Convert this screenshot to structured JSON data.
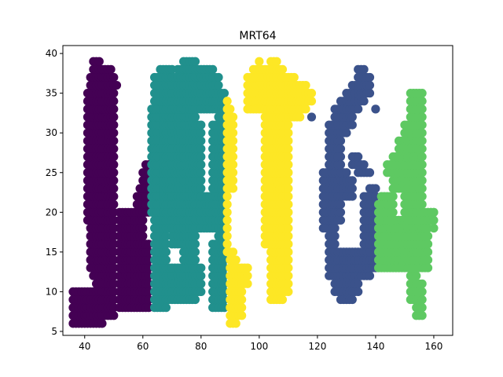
{
  "chart_data": {
    "type": "scatter",
    "title": "MRT64",
    "xlabel": "",
    "ylabel": "",
    "xlim": [
      32.5,
      166.5
    ],
    "ylim": [
      4.5,
      41.0
    ],
    "xticks": [
      40,
      60,
      80,
      100,
      120,
      140,
      160
    ],
    "yticks": [
      5,
      10,
      15,
      20,
      25,
      30,
      35,
      40
    ],
    "grid": false,
    "legend": "none",
    "step": 1,
    "series": [
      {
        "color": "#440154",
        "runs": [
          [
            6,
            36,
            46
          ],
          [
            7,
            36,
            50
          ],
          [
            8,
            36,
            50
          ],
          [
            9,
            36,
            50
          ],
          [
            10,
            36,
            50
          ],
          [
            8,
            52,
            62
          ],
          [
            9,
            52,
            62
          ],
          [
            10,
            52,
            62
          ],
          [
            11,
            52,
            62
          ],
          [
            12,
            52,
            62
          ],
          [
            13,
            52,
            62
          ],
          [
            14,
            52,
            62
          ],
          [
            15,
            52,
            62
          ],
          [
            16,
            52,
            62
          ],
          [
            17,
            52,
            60
          ],
          [
            18,
            52,
            60
          ],
          [
            19,
            52,
            60
          ],
          [
            20,
            52,
            62
          ],
          [
            11,
            44,
            50
          ],
          [
            12,
            43,
            50
          ],
          [
            13,
            42,
            50
          ],
          [
            14,
            42,
            50
          ],
          [
            15,
            42,
            50
          ],
          [
            16,
            42,
            50
          ],
          [
            17,
            42,
            50
          ],
          [
            18,
            42,
            50
          ],
          [
            19,
            41,
            50
          ],
          [
            20,
            41,
            50
          ],
          [
            21,
            41,
            50
          ],
          [
            22,
            41,
            50
          ],
          [
            23,
            41,
            50
          ],
          [
            24,
            41,
            50
          ],
          [
            25,
            41,
            50
          ],
          [
            26,
            41,
            50
          ],
          [
            27,
            41,
            50
          ],
          [
            28,
            41,
            50
          ],
          [
            29,
            41,
            50
          ],
          [
            30,
            41,
            50
          ],
          [
            31,
            41,
            50
          ],
          [
            32,
            41,
            50
          ],
          [
            33,
            41,
            50
          ],
          [
            34,
            41,
            50
          ],
          [
            35,
            41,
            50
          ],
          [
            36,
            42,
            51
          ],
          [
            37,
            42,
            50
          ],
          [
            38,
            43,
            49
          ],
          [
            39,
            43,
            45
          ],
          [
            21,
            58,
            62
          ],
          [
            22,
            58,
            62
          ],
          [
            23,
            59,
            62
          ],
          [
            24,
            60,
            62
          ],
          [
            25,
            60,
            62
          ],
          [
            26,
            61,
            62
          ]
        ]
      },
      {
        "color": "#21908d",
        "runs": [
          [
            8,
            64,
            68
          ],
          [
            9,
            64,
            78
          ],
          [
            10,
            64,
            80
          ],
          [
            11,
            64,
            80
          ],
          [
            12,
            64,
            80
          ],
          [
            13,
            64,
            80
          ],
          [
            14,
            64,
            68
          ],
          [
            15,
            64,
            68
          ],
          [
            16,
            64,
            68
          ],
          [
            17,
            64,
            68
          ],
          [
            18,
            64,
            88
          ],
          [
            19,
            64,
            88
          ],
          [
            20,
            63,
            88
          ],
          [
            21,
            63,
            88
          ],
          [
            22,
            63,
            88
          ],
          [
            8,
            84,
            88
          ],
          [
            9,
            84,
            88
          ],
          [
            10,
            84,
            88
          ],
          [
            11,
            84,
            88
          ],
          [
            12,
            84,
            88
          ],
          [
            13,
            84,
            88
          ],
          [
            14,
            84,
            88
          ],
          [
            15,
            84,
            88
          ],
          [
            16,
            84,
            88
          ],
          [
            17,
            86,
            88
          ],
          [
            14,
            74,
            78
          ],
          [
            15,
            74,
            78
          ],
          [
            16,
            70,
            78
          ],
          [
            17,
            70,
            78
          ],
          [
            23,
            63,
            80
          ],
          [
            24,
            63,
            80
          ],
          [
            25,
            63,
            80
          ],
          [
            26,
            63,
            80
          ],
          [
            27,
            63,
            80
          ],
          [
            28,
            63,
            80
          ],
          [
            29,
            63,
            80
          ],
          [
            30,
            63,
            80
          ],
          [
            31,
            63,
            80
          ],
          [
            32,
            63,
            78
          ],
          [
            33,
            63,
            88
          ],
          [
            23,
            84,
            88
          ],
          [
            24,
            84,
            88
          ],
          [
            25,
            84,
            88
          ],
          [
            26,
            84,
            88
          ],
          [
            27,
            84,
            88
          ],
          [
            28,
            84,
            88
          ],
          [
            29,
            84,
            88
          ],
          [
            30,
            84,
            88
          ],
          [
            31,
            84,
            88
          ],
          [
            32,
            86,
            88
          ],
          [
            34,
            64,
            88
          ],
          [
            35,
            64,
            88
          ],
          [
            36,
            64,
            86
          ],
          [
            37,
            64,
            86
          ],
          [
            38,
            66,
            70
          ],
          [
            38,
            72,
            84
          ],
          [
            39,
            74,
            78
          ]
        ]
      },
      {
        "color": "#fde725",
        "runs": [
          [
            6,
            90,
            92
          ],
          [
            7,
            90,
            94
          ],
          [
            8,
            90,
            94
          ],
          [
            9,
            90,
            94
          ],
          [
            10,
            90,
            94
          ],
          [
            11,
            90,
            96
          ],
          [
            12,
            90,
            96
          ],
          [
            13,
            90,
            96
          ],
          [
            14,
            90,
            92
          ],
          [
            15,
            89,
            91
          ],
          [
            16,
            89,
            89
          ],
          [
            17,
            89,
            89
          ],
          [
            18,
            89,
            89
          ],
          [
            19,
            89,
            89
          ],
          [
            20,
            89,
            89
          ],
          [
            21,
            89,
            89
          ],
          [
            22,
            89,
            89
          ],
          [
            23,
            89,
            89
          ],
          [
            24,
            89,
            89
          ],
          [
            25,
            89,
            89
          ],
          [
            26,
            89,
            89
          ],
          [
            27,
            89,
            89
          ],
          [
            28,
            89,
            89
          ],
          [
            29,
            89,
            89
          ],
          [
            30,
            89,
            89
          ],
          [
            31,
            89,
            89
          ],
          [
            32,
            89,
            89
          ],
          [
            33,
            89,
            89
          ],
          [
            34,
            89,
            89
          ],
          [
            23,
            90,
            91
          ],
          [
            24,
            90,
            91
          ],
          [
            25,
            90,
            91
          ],
          [
            26,
            90,
            91
          ],
          [
            27,
            90,
            91
          ],
          [
            28,
            90,
            91
          ],
          [
            29,
            90,
            91
          ],
          [
            30,
            90,
            91
          ],
          [
            31,
            90,
            91
          ],
          [
            32,
            90,
            91
          ],
          [
            33,
            90,
            90
          ],
          [
            9,
            104,
            108
          ],
          [
            10,
            104,
            110
          ],
          [
            11,
            104,
            110
          ],
          [
            12,
            104,
            110
          ],
          [
            13,
            104,
            110
          ],
          [
            14,
            104,
            110
          ],
          [
            15,
            104,
            110
          ],
          [
            16,
            102,
            110
          ],
          [
            17,
            102,
            110
          ],
          [
            18,
            102,
            110
          ],
          [
            19,
            102,
            110
          ],
          [
            20,
            102,
            110
          ],
          [
            21,
            102,
            110
          ],
          [
            22,
            102,
            110
          ],
          [
            23,
            102,
            110
          ],
          [
            24,
            102,
            110
          ],
          [
            25,
            102,
            110
          ],
          [
            26,
            102,
            110
          ],
          [
            27,
            102,
            110
          ],
          [
            28,
            102,
            110
          ],
          [
            29,
            102,
            110
          ],
          [
            30,
            102,
            110
          ],
          [
            31,
            102,
            110
          ],
          [
            32,
            102,
            114
          ],
          [
            33,
            96,
            116
          ],
          [
            34,
            96,
            118
          ],
          [
            35,
            96,
            118
          ],
          [
            36,
            96,
            116
          ],
          [
            37,
            96,
            112
          ],
          [
            38,
            98,
            108
          ],
          [
            39,
            100,
            100
          ],
          [
            39,
            104,
            106
          ]
        ]
      },
      {
        "color": "#3b528b",
        "runs": [
          [
            9,
            128,
            132
          ],
          [
            10,
            126,
            134
          ],
          [
            11,
            126,
            134
          ],
          [
            12,
            124,
            138
          ],
          [
            13,
            124,
            140
          ],
          [
            14,
            124,
            140
          ],
          [
            15,
            124,
            140
          ],
          [
            16,
            124,
            126
          ],
          [
            17,
            124,
            126
          ],
          [
            18,
            122,
            126
          ],
          [
            19,
            122,
            128
          ],
          [
            20,
            122,
            128
          ],
          [
            21,
            122,
            128
          ],
          [
            22,
            122,
            132
          ],
          [
            23,
            122,
            132
          ],
          [
            24,
            122,
            132
          ],
          [
            25,
            122,
            130
          ],
          [
            26,
            124,
            128
          ],
          [
            27,
            124,
            128
          ],
          [
            28,
            124,
            128
          ],
          [
            29,
            124,
            128
          ],
          [
            30,
            124,
            130
          ],
          [
            31,
            124,
            132
          ],
          [
            32,
            126,
            132
          ],
          [
            33,
            126,
            134
          ],
          [
            34,
            128,
            136
          ],
          [
            35,
            130,
            138
          ],
          [
            36,
            132,
            138
          ],
          [
            37,
            134,
            138
          ],
          [
            38,
            134,
            136
          ],
          [
            16,
            136,
            140
          ],
          [
            17,
            136,
            140
          ],
          [
            18,
            136,
            140
          ],
          [
            19,
            136,
            140
          ],
          [
            20,
            136,
            140
          ],
          [
            21,
            136,
            140
          ],
          [
            22,
            136,
            140
          ],
          [
            23,
            138,
            140
          ],
          [
            25,
            134,
            138
          ],
          [
            26,
            132,
            136
          ],
          [
            27,
            132,
            134
          ],
          [
            32,
            118,
            118
          ],
          [
            33,
            140,
            140
          ]
        ]
      },
      {
        "color": "#5ec962",
        "runs": [
          [
            7,
            154,
            156
          ],
          [
            8,
            154,
            156
          ],
          [
            9,
            152,
            156
          ],
          [
            10,
            152,
            156
          ],
          [
            11,
            152,
            156
          ],
          [
            12,
            152,
            154
          ],
          [
            13,
            141,
            158
          ],
          [
            14,
            141,
            158
          ],
          [
            15,
            141,
            158
          ],
          [
            16,
            141,
            158
          ],
          [
            17,
            141,
            158
          ],
          [
            18,
            141,
            158
          ],
          [
            19,
            141,
            158
          ],
          [
            20,
            141,
            146
          ],
          [
            20,
            150,
            160
          ],
          [
            21,
            141,
            146
          ],
          [
            22,
            142,
            146
          ],
          [
            20,
            158,
            160
          ],
          [
            19,
            158,
            160
          ],
          [
            18,
            160,
            160
          ],
          [
            21,
            150,
            156
          ],
          [
            22,
            150,
            156
          ],
          [
            23,
            146,
            156
          ],
          [
            24,
            146,
            156
          ],
          [
            25,
            144,
            156
          ],
          [
            26,
            144,
            156
          ],
          [
            27,
            146,
            156
          ],
          [
            28,
            148,
            156
          ],
          [
            29,
            148,
            156
          ],
          [
            30,
            150,
            156
          ],
          [
            31,
            150,
            156
          ],
          [
            32,
            152,
            156
          ],
          [
            33,
            152,
            156
          ],
          [
            34,
            152,
            156
          ],
          [
            35,
            152,
            156
          ]
        ]
      }
    ]
  }
}
